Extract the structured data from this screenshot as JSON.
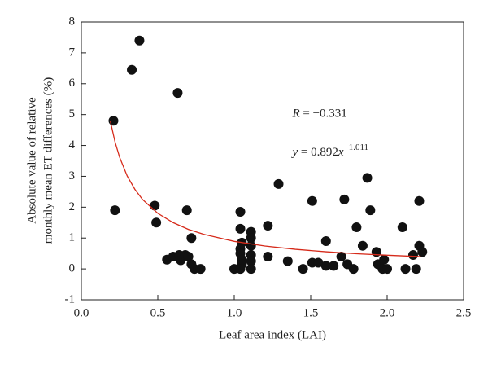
{
  "chart_data": {
    "type": "scatter",
    "xlabel": "Leaf area index (LAI)",
    "ylabel": [
      "Absolute value of relative",
      "monthly mean ET differences (%)"
    ],
    "xlim": [
      0,
      2.5
    ],
    "ylim": [
      -1,
      8
    ],
    "xticks": [
      {
        "value": 0,
        "label": "0.0"
      },
      0.5,
      {
        "value": 1,
        "label": "1.0"
      },
      1.5,
      {
        "value": 2,
        "label": "2.0"
      },
      2.5
    ],
    "yticks": [
      -1,
      0,
      1,
      2,
      3,
      4,
      5,
      6,
      7,
      8
    ],
    "series": [
      {
        "color": "#111111",
        "x": [
          0.21,
          0.22,
          0.33,
          0.38,
          0.48,
          0.49,
          0.63,
          0.69,
          0.72,
          0.56,
          0.6,
          0.64,
          0.65,
          0.68,
          0.7,
          0.72,
          0.74,
          0.78,
          1.0,
          1.04,
          1.04,
          1.05,
          1.04,
          1.04,
          1.05,
          1.05,
          1.04,
          1.11,
          1.11,
          1.11,
          1.11,
          1.11,
          1.11,
          1.22,
          1.22,
          1.29,
          1.35,
          1.45,
          1.51,
          1.51,
          1.55,
          1.6,
          1.6,
          1.65,
          1.7,
          1.72,
          1.74,
          1.78,
          1.8,
          1.84,
          1.87,
          1.89,
          1.93,
          1.94,
          1.97,
          1.98,
          2.0,
          2.1,
          2.12,
          2.17,
          2.19,
          2.21,
          2.21,
          2.23
        ],
        "values": [
          4.8,
          1.9,
          6.45,
          7.4,
          2.05,
          1.5,
          5.7,
          1.9,
          1.0,
          0.3,
          0.4,
          0.45,
          0.28,
          0.45,
          0.4,
          0.15,
          0,
          0,
          0,
          1.85,
          1.3,
          0.85,
          0.65,
          0.5,
          0.3,
          0.15,
          0,
          1.2,
          1.0,
          0.75,
          0.45,
          0.25,
          0,
          1.4,
          0.4,
          2.75,
          0.25,
          0,
          2.2,
          0.2,
          0.2,
          0.1,
          0.9,
          0.1,
          0.4,
          2.25,
          0.15,
          0,
          1.35,
          0.75,
          2.95,
          1.9,
          0.55,
          0.15,
          0,
          0.3,
          0,
          1.35,
          0,
          0.45,
          0,
          2.2,
          0.75,
          0.55
        ]
      },
      {
        "type": "line",
        "color": "#d62a1a",
        "x": [
          0.19,
          0.22,
          0.25,
          0.3,
          0.35,
          0.4,
          0.5,
          0.6,
          0.7,
          0.8,
          1.0,
          1.2,
          1.4,
          1.6,
          1.8,
          2.0,
          2.22
        ],
        "values": [
          4.78,
          4.12,
          3.62,
          3.01,
          2.58,
          2.25,
          1.8,
          1.5,
          1.28,
          1.12,
          0.892,
          0.742,
          0.635,
          0.555,
          0.492,
          0.443,
          0.398
        ]
      }
    ],
    "annotations": [
      {
        "symbol": "R",
        "text": " = −0.331",
        "x": 1.38,
        "y": 5.0
      },
      {
        "symbol": "y",
        "text": " = 0.892",
        "var": "x",
        "exp": "−1.011",
        "x": 1.38,
        "y": 3.75
      }
    ]
  }
}
